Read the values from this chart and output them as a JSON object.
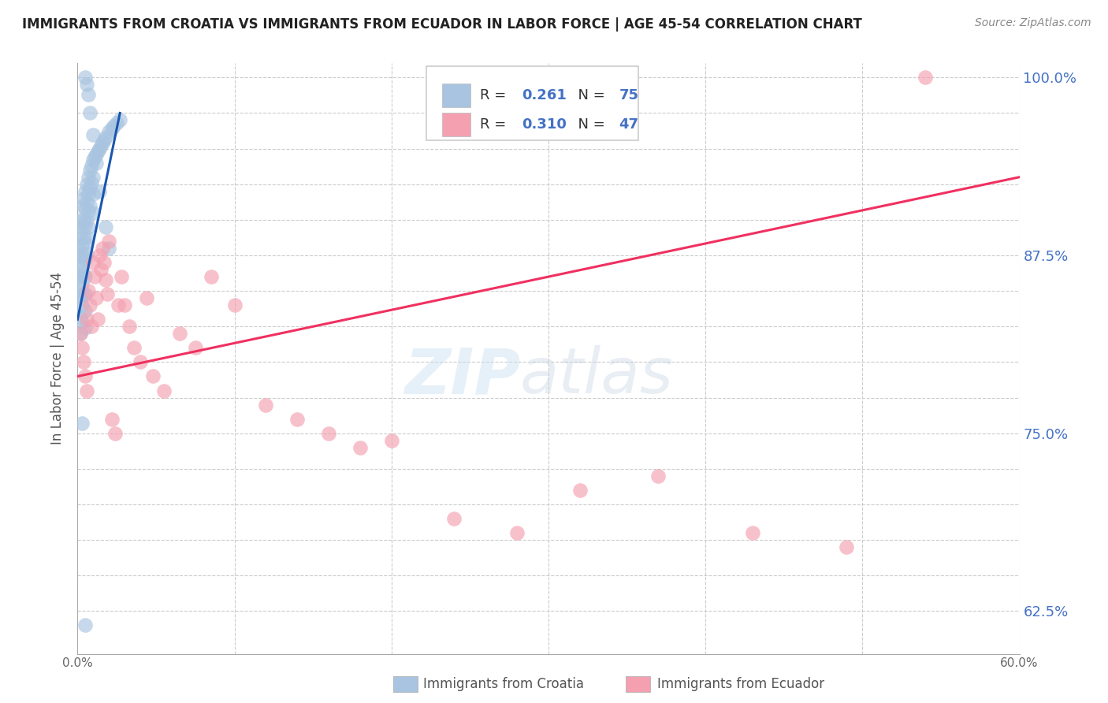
{
  "title": "IMMIGRANTS FROM CROATIA VS IMMIGRANTS FROM ECUADOR IN LABOR FORCE | AGE 45-54 CORRELATION CHART",
  "source": "Source: ZipAtlas.com",
  "ylabel": "In Labor Force | Age 45-54",
  "xlim": [
    0.0,
    0.6
  ],
  "ylim": [
    0.595,
    1.01
  ],
  "croatia_color": "#a8c4e0",
  "ecuador_color": "#f4a0b0",
  "croatia_line_color": "#1a56b0",
  "ecuador_line_color": "#f03060",
  "croatia_R": 0.261,
  "croatia_N": 75,
  "ecuador_R": 0.31,
  "ecuador_N": 47,
  "watermark_zip": "ZIP",
  "watermark_atlas": "atlas",
  "background_color": "#ffffff",
  "grid_color": "#cccccc",
  "croatia_x": [
    0.001,
    0.001,
    0.001,
    0.001,
    0.002,
    0.002,
    0.002,
    0.002,
    0.002,
    0.002,
    0.002,
    0.003,
    0.003,
    0.003,
    0.003,
    0.003,
    0.003,
    0.003,
    0.004,
    0.004,
    0.004,
    0.004,
    0.004,
    0.004,
    0.005,
    0.005,
    0.005,
    0.005,
    0.005,
    0.005,
    0.005,
    0.005,
    0.005,
    0.006,
    0.006,
    0.006,
    0.006,
    0.006,
    0.007,
    0.007,
    0.007,
    0.007,
    0.008,
    0.008,
    0.008,
    0.009,
    0.009,
    0.01,
    0.01,
    0.01,
    0.01,
    0.011,
    0.012,
    0.013,
    0.014,
    0.015,
    0.016,
    0.017,
    0.018,
    0.02,
    0.022,
    0.023,
    0.025,
    0.027,
    0.005,
    0.006,
    0.007,
    0.008,
    0.01,
    0.012,
    0.014,
    0.018,
    0.02,
    0.005,
    0.003
  ],
  "croatia_y": [
    0.88,
    0.87,
    0.86,
    0.85,
    0.9,
    0.89,
    0.875,
    0.86,
    0.845,
    0.832,
    0.82,
    0.91,
    0.895,
    0.882,
    0.868,
    0.855,
    0.84,
    0.828,
    0.915,
    0.9,
    0.888,
    0.875,
    0.862,
    0.848,
    0.92,
    0.908,
    0.896,
    0.884,
    0.872,
    0.86,
    0.848,
    0.836,
    0.824,
    0.925,
    0.912,
    0.9,
    0.888,
    0.876,
    0.93,
    0.918,
    0.906,
    0.895,
    0.935,
    0.922,
    0.91,
    0.938,
    0.926,
    0.942,
    0.93,
    0.918,
    0.905,
    0.944,
    0.946,
    0.948,
    0.95,
    0.952,
    0.954,
    0.956,
    0.958,
    0.962,
    0.964,
    0.966,
    0.968,
    0.97,
    1.0,
    0.995,
    0.988,
    0.975,
    0.96,
    0.94,
    0.92,
    0.895,
    0.88,
    0.615,
    0.757
  ],
  "ecuador_x": [
    0.002,
    0.003,
    0.004,
    0.005,
    0.006,
    0.006,
    0.007,
    0.008,
    0.009,
    0.01,
    0.011,
    0.012,
    0.013,
    0.014,
    0.015,
    0.016,
    0.017,
    0.018,
    0.019,
    0.02,
    0.022,
    0.024,
    0.026,
    0.028,
    0.03,
    0.033,
    0.036,
    0.04,
    0.044,
    0.048,
    0.055,
    0.065,
    0.075,
    0.085,
    0.1,
    0.12,
    0.14,
    0.16,
    0.18,
    0.2,
    0.24,
    0.28,
    0.32,
    0.37,
    0.43,
    0.49,
    0.54
  ],
  "ecuador_y": [
    0.82,
    0.81,
    0.8,
    0.79,
    0.83,
    0.78,
    0.85,
    0.84,
    0.825,
    0.87,
    0.86,
    0.845,
    0.83,
    0.875,
    0.865,
    0.88,
    0.87,
    0.858,
    0.848,
    0.885,
    0.76,
    0.75,
    0.84,
    0.86,
    0.84,
    0.825,
    0.81,
    0.8,
    0.845,
    0.79,
    0.78,
    0.82,
    0.81,
    0.86,
    0.84,
    0.77,
    0.76,
    0.75,
    0.74,
    0.745,
    0.69,
    0.68,
    0.71,
    0.72,
    0.68,
    0.67,
    1.0
  ],
  "croatia_line_x": [
    0.0,
    0.027
  ],
  "croatia_line_y": [
    0.83,
    0.975
  ],
  "ecuador_line_x": [
    0.0,
    0.6
  ],
  "ecuador_line_y": [
    0.79,
    0.93
  ]
}
